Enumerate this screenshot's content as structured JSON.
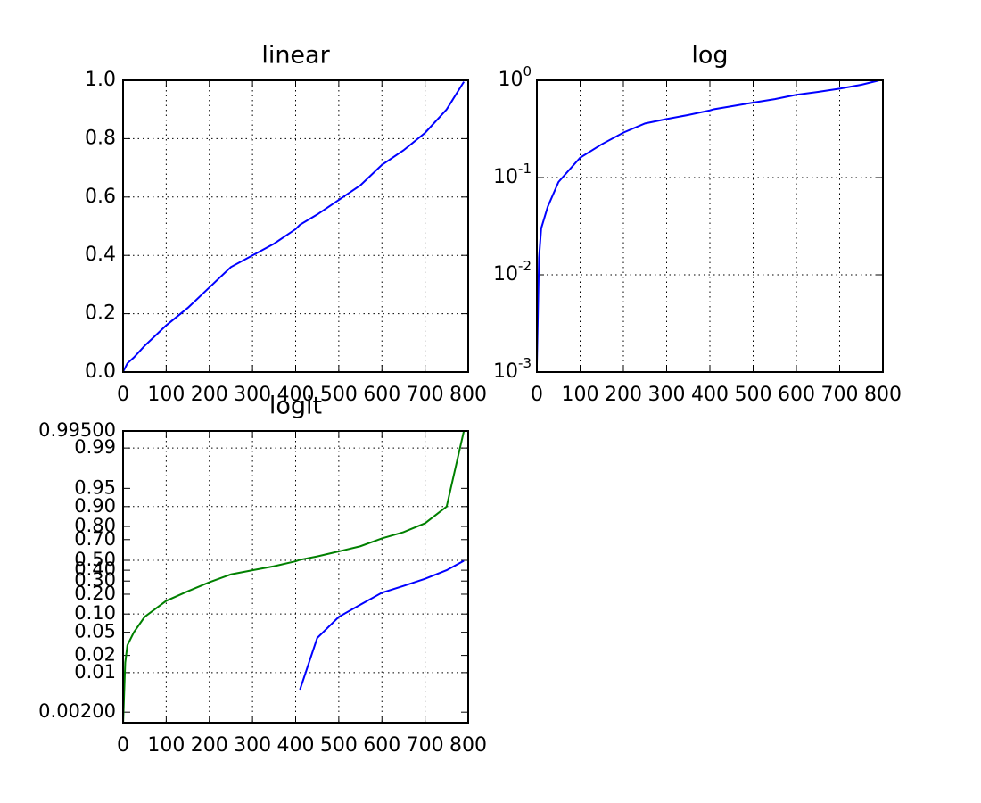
{
  "chart_data": [
    {
      "type": "line",
      "yscale": "linear",
      "title": "linear",
      "grid": true,
      "x": [
        0,
        5,
        10,
        25,
        50,
        100,
        150,
        200,
        250,
        300,
        350,
        400,
        410,
        450,
        500,
        550,
        600,
        650,
        700,
        750,
        790
      ],
      "series": [
        {
          "color": "#0000ff",
          "values": [
            0.0012,
            0.015,
            0.03,
            0.05,
            0.09,
            0.16,
            0.22,
            0.29,
            0.36,
            0.4,
            0.44,
            0.49,
            0.505,
            0.54,
            0.59,
            0.64,
            0.71,
            0.76,
            0.82,
            0.9,
            0.995
          ]
        }
      ],
      "xlim": [
        0,
        800
      ],
      "xticks": [
        0,
        100,
        200,
        300,
        400,
        500,
        600,
        700,
        800
      ],
      "ylim": [
        0,
        1
      ],
      "yticks": [
        {
          "value": 0,
          "label": "0.0"
        },
        {
          "value": 0.2,
          "label": "0.2"
        },
        {
          "value": 0.4,
          "label": "0.4"
        },
        {
          "value": 0.6,
          "label": "0.6"
        },
        {
          "value": 0.8,
          "label": "0.8"
        },
        {
          "value": 1,
          "label": "1.0"
        }
      ]
    },
    {
      "type": "line",
      "yscale": "log",
      "title": "log",
      "grid": true,
      "x": [
        0,
        5,
        10,
        25,
        50,
        100,
        150,
        200,
        250,
        300,
        350,
        400,
        410,
        450,
        500,
        550,
        600,
        650,
        700,
        750,
        790
      ],
      "series": [
        {
          "color": "#0000ff",
          "values": [
            0.0012,
            0.015,
            0.03,
            0.05,
            0.09,
            0.16,
            0.22,
            0.29,
            0.36,
            0.4,
            0.44,
            0.49,
            0.505,
            0.54,
            0.59,
            0.64,
            0.71,
            0.76,
            0.82,
            0.9,
            0.995
          ]
        }
      ],
      "xlim": [
        0,
        800
      ],
      "xticks": [
        0,
        100,
        200,
        300,
        400,
        500,
        600,
        700,
        800
      ],
      "ylim": [
        0.001,
        1
      ],
      "yticks": [
        {
          "value": 0.001,
          "label": "10",
          "exponent": "-3"
        },
        {
          "value": 0.01,
          "label": "10",
          "exponent": "-2"
        },
        {
          "value": 0.1,
          "label": "10",
          "exponent": "-1"
        },
        {
          "value": 1,
          "label": "10",
          "exponent": "0"
        }
      ]
    },
    {
      "type": "line",
      "yscale": "logit",
      "title": "logit",
      "grid": true,
      "x": [
        0,
        5,
        10,
        25,
        50,
        100,
        150,
        200,
        250,
        300,
        350,
        400,
        410,
        450,
        500,
        550,
        600,
        650,
        700,
        750,
        790
      ],
      "series": [
        {
          "color": "#0000ff",
          "values": [
            null,
            null,
            null,
            null,
            null,
            null,
            null,
            null,
            null,
            null,
            null,
            null,
            0.005,
            0.04,
            0.09,
            0.14,
            0.21,
            0.26,
            0.32,
            0.4,
            0.495
          ]
        },
        {
          "color": "#008000",
          "values": [
            0.0012,
            0.015,
            0.03,
            0.05,
            0.09,
            0.16,
            0.22,
            0.29,
            0.36,
            0.4,
            0.44,
            0.49,
            0.505,
            0.54,
            0.59,
            0.64,
            0.71,
            0.76,
            0.82,
            0.9,
            0.995
          ]
        }
      ],
      "xlim": [
        0,
        800
      ],
      "xticks": [
        0,
        100,
        200,
        300,
        400,
        500,
        600,
        700,
        800
      ],
      "ylim": [
        0.0013,
        0.995
      ],
      "ygrid": [
        0.01,
        0.1,
        0.5,
        0.9,
        0.99
      ],
      "yticks": [
        {
          "value": 0.002,
          "label": "0.00200"
        },
        {
          "value": 0.01,
          "label": "0.01"
        },
        {
          "value": 0.02,
          "label": "0.02"
        },
        {
          "value": 0.05,
          "label": "0.05"
        },
        {
          "value": 0.1,
          "label": "0.10"
        },
        {
          "value": 0.2,
          "label": "0.20"
        },
        {
          "value": 0.3,
          "label": "0.30"
        },
        {
          "value": 0.4,
          "label": "0.40"
        },
        {
          "value": 0.5,
          "label": "0.50"
        },
        {
          "value": 0.7,
          "label": "0.70"
        },
        {
          "value": 0.8,
          "label": "0.80"
        },
        {
          "value": 0.9,
          "label": "0.90"
        },
        {
          "value": 0.95,
          "label": "0.95"
        },
        {
          "value": 0.99,
          "label": "0.99"
        },
        {
          "value": 0.995,
          "label": "0.99500"
        }
      ]
    }
  ]
}
